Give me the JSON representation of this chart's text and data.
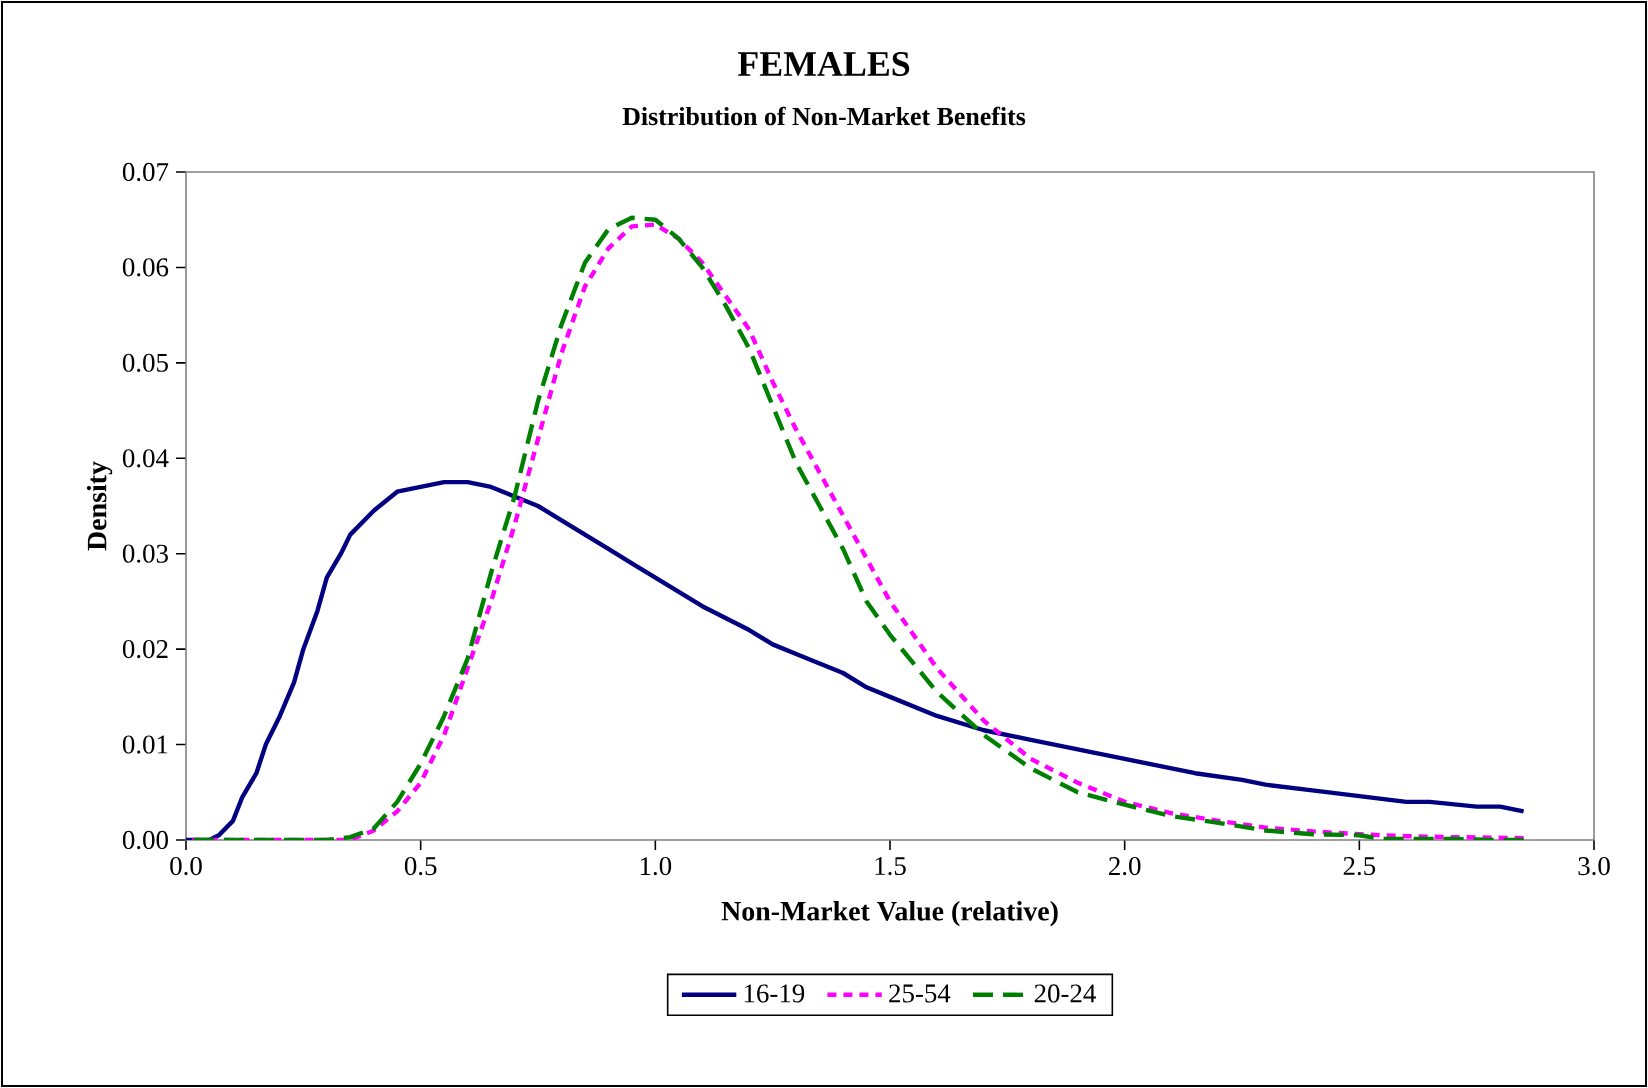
{
  "chart_data": {
    "type": "line",
    "title": "FEMALES",
    "subtitle": "Distribution of Non-Market Benefits",
    "xlabel": "Non-Market Value (relative)",
    "ylabel": "Density",
    "xlim": [
      0,
      3
    ],
    "xticks": [
      {
        "value": 0,
        "label": "0.0"
      },
      {
        "value": 0.5,
        "label": "0.5"
      },
      {
        "value": 1,
        "label": "1.0"
      },
      {
        "value": 1.5,
        "label": "1.5"
      },
      {
        "value": 2,
        "label": "2.0"
      },
      {
        "value": 2.5,
        "label": "2.5"
      },
      {
        "value": 3,
        "label": "3.0"
      }
    ],
    "ylim": [
      0,
      0.07
    ],
    "yticks": [
      {
        "value": 0,
        "label": "0.00"
      },
      {
        "value": 0.01,
        "label": "0.01"
      },
      {
        "value": 0.02,
        "label": "0.02"
      },
      {
        "value": 0.03,
        "label": "0.03"
      },
      {
        "value": 0.04,
        "label": "0.04"
      },
      {
        "value": 0.05,
        "label": "0.05"
      },
      {
        "value": 0.06,
        "label": "0.06"
      },
      {
        "value": 0.07,
        "label": "0.07"
      }
    ],
    "grid": false,
    "legend": "bottom",
    "marker": "none",
    "series": [
      {
        "name": "16-19",
        "color": "#000080",
        "line_style": "solid",
        "x": [
          0,
          0.05,
          0.07,
          0.1,
          0.12,
          0.15,
          0.17,
          0.2,
          0.23,
          0.25,
          0.28,
          0.3,
          0.33,
          0.35,
          0.4,
          0.45,
          0.5,
          0.55,
          0.6,
          0.65,
          0.7,
          0.75,
          0.8,
          0.85,
          0.9,
          0.95,
          1.0,
          1.1,
          1.2,
          1.25,
          1.3,
          1.4,
          1.45,
          1.5,
          1.6,
          1.7,
          1.8,
          1.9,
          2.0,
          2.05,
          2.1,
          2.15,
          2.25,
          2.3,
          2.4,
          2.5,
          2.6,
          2.65,
          2.75,
          2.8,
          2.85
        ],
        "values": [
          0,
          0,
          0.0005,
          0.002,
          0.0045,
          0.007,
          0.01,
          0.013,
          0.0165,
          0.02,
          0.024,
          0.0275,
          0.03,
          0.032,
          0.0345,
          0.0365,
          0.037,
          0.0375,
          0.0375,
          0.037,
          0.036,
          0.035,
          0.0335,
          0.032,
          0.0305,
          0.029,
          0.0275,
          0.0245,
          0.022,
          0.0205,
          0.0195,
          0.0175,
          0.016,
          0.015,
          0.013,
          0.0115,
          0.0105,
          0.0095,
          0.0085,
          0.008,
          0.0075,
          0.007,
          0.0063,
          0.0058,
          0.0052,
          0.0046,
          0.004,
          0.004,
          0.0035,
          0.0035,
          0.003
        ]
      },
      {
        "name": "25-54",
        "color": "#ff00ff",
        "line_style": "dotted",
        "x": [
          0,
          0.35,
          0.4,
          0.45,
          0.5,
          0.55,
          0.6,
          0.65,
          0.7,
          0.75,
          0.8,
          0.85,
          0.9,
          0.95,
          1.0,
          1.05,
          1.1,
          1.15,
          1.2,
          1.25,
          1.3,
          1.35,
          1.4,
          1.45,
          1.5,
          1.6,
          1.7,
          1.8,
          1.9,
          2.0,
          2.1,
          2.2,
          2.3,
          2.4,
          2.5,
          2.6,
          2.7,
          2.85
        ],
        "values": [
          0,
          0,
          0.001,
          0.003,
          0.006,
          0.011,
          0.018,
          0.025,
          0.033,
          0.042,
          0.051,
          0.058,
          0.062,
          0.0643,
          0.0645,
          0.063,
          0.0605,
          0.057,
          0.0535,
          0.048,
          0.043,
          0.0385,
          0.034,
          0.0295,
          0.025,
          0.018,
          0.0125,
          0.0085,
          0.006,
          0.004,
          0.0028,
          0.002,
          0.0013,
          0.0009,
          0.0006,
          0.0004,
          0.0003,
          0.0002
        ]
      },
      {
        "name": "20-24",
        "color": "#008000",
        "line_style": "dashed",
        "x": [
          0,
          0.3,
          0.35,
          0.4,
          0.45,
          0.5,
          0.55,
          0.6,
          0.65,
          0.7,
          0.75,
          0.8,
          0.85,
          0.9,
          0.95,
          1.0,
          1.05,
          1.1,
          1.15,
          1.2,
          1.25,
          1.3,
          1.35,
          1.4,
          1.45,
          1.5,
          1.6,
          1.7,
          1.8,
          1.9,
          2.0,
          2.1,
          2.2,
          2.3,
          2.4,
          2.5,
          2.55,
          2.7,
          2.8,
          2.85
        ],
        "values": [
          0,
          0,
          0.0003,
          0.0012,
          0.004,
          0.008,
          0.013,
          0.019,
          0.028,
          0.036,
          0.046,
          0.054,
          0.0605,
          0.064,
          0.0652,
          0.065,
          0.063,
          0.06,
          0.056,
          0.0515,
          0.0455,
          0.0395,
          0.035,
          0.0305,
          0.025,
          0.0215,
          0.0155,
          0.011,
          0.0075,
          0.005,
          0.0037,
          0.0025,
          0.0018,
          0.001,
          0.0006,
          0.0005,
          0.0001,
          0.0001,
          0,
          0
        ]
      }
    ]
  }
}
